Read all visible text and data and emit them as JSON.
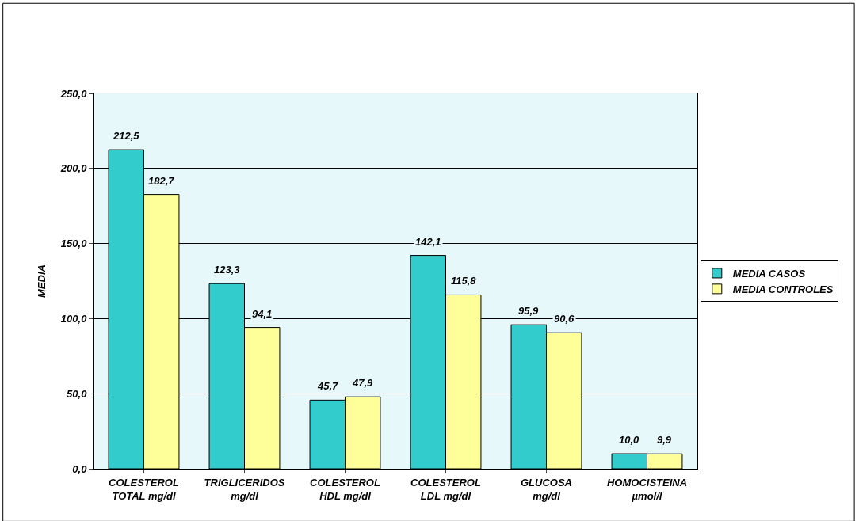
{
  "chart_data": {
    "type": "bar",
    "ylabel": "MEDIA",
    "categories": [
      "COLESTEROL\nTOTAL mg/dl",
      "TRIGLICERIDOS\nmg/dl",
      "COLESTEROL\nHDL mg/dl",
      "COLESTEROL\nLDL mg/dl",
      "GLUCOSA\nmg/dl",
      "HOMOCISTEINA\nµmol/l"
    ],
    "series": [
      {
        "name": "MEDIA CASOS",
        "color": "#33cccc",
        "values": [
          212.5,
          123.3,
          45.7,
          142.1,
          95.9,
          10.0
        ],
        "value_labels": [
          "212,5",
          "123,3",
          "45,7",
          "142,1",
          "95,9",
          "10,0"
        ]
      },
      {
        "name": "MEDIA CONTROLES",
        "color": "#ffff99",
        "values": [
          182.7,
          94.1,
          47.9,
          115.8,
          90.6,
          9.9
        ],
        "value_labels": [
          "182,7",
          "94,1",
          "47,9",
          "115,8",
          "90,6",
          "9,9"
        ]
      }
    ],
    "ylim": [
      0,
      250
    ],
    "yticks": [
      {
        "value": 0,
        "label": "0,0"
      },
      {
        "value": 50,
        "label": "50,0"
      },
      {
        "value": 100,
        "label": "100,0"
      },
      {
        "value": 150,
        "label": "150,0"
      },
      {
        "value": 200,
        "label": "200,0"
      },
      {
        "value": 250,
        "label": "250,0"
      }
    ],
    "grid": "y",
    "legend": "right"
  }
}
